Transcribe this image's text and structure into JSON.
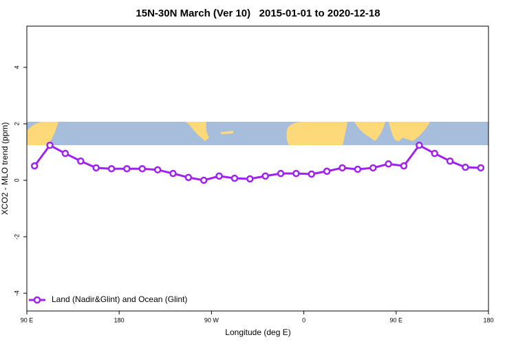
{
  "chart_data": {
    "type": "line",
    "title": "15N-30N March (Ver 10)   2015-01-01 to 2020-12-18",
    "x_label": "Longitude (deg E)",
    "y_label": "XCO2 - MLO trend (ppm)",
    "xlim": [
      90,
      540
    ],
    "ylim": [
      -4.63,
      5.46
    ],
    "xticks": [
      {
        "value": 90,
        "label": "90 E"
      },
      {
        "value": 180,
        "label": "180"
      },
      {
        "value": 270,
        "label": "90 W"
      },
      {
        "value": 360,
        "label": "0"
      },
      {
        "value": 450,
        "label": "90 E"
      },
      {
        "value": 540,
        "label": "180"
      }
    ],
    "yticks": [
      -4,
      -2,
      0,
      2,
      4
    ],
    "legend": "bottomleft",
    "x": [
      97.5,
      112.5,
      127.5,
      142.5,
      157.5,
      172.5,
      187.5,
      202.5,
      217.5,
      232.5,
      247.5,
      262.5,
      277.5,
      292.5,
      307.5,
      322.5,
      337.5,
      352.5,
      367.5,
      382.5,
      397.5,
      412.5,
      427.5,
      442.5,
      457.5,
      472.5,
      487.5,
      502.5,
      517.5,
      532.5
    ],
    "series": [
      {
        "name": "Land (Nadir&Glint) and Ocean (Glint)",
        "color": "#a020f0",
        "values": [
          0.51,
          1.24,
          0.95,
          0.68,
          0.44,
          0.41,
          0.41,
          0.41,
          0.37,
          0.24,
          0.1,
          0.0,
          0.15,
          0.07,
          0.05,
          0.15,
          0.24,
          0.24,
          0.22,
          0.32,
          0.44,
          0.39,
          0.44,
          0.58,
          0.51,
          1.24,
          0.95,
          0.68,
          0.46,
          0.44
        ]
      }
    ]
  }
}
